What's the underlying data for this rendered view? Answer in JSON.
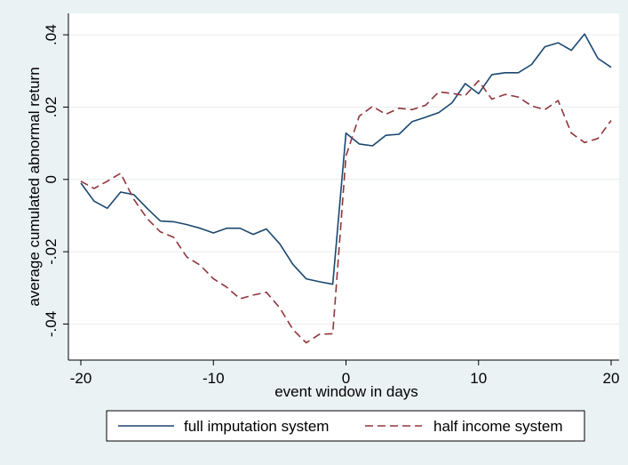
{
  "chart_data": {
    "type": "line",
    "xlabel": "event window in days",
    "ylabel": "average cumulated abnormal return",
    "xlim": [
      -20,
      20
    ],
    "ylim": [
      -0.048,
      0.042
    ],
    "x_ticks": [
      -20,
      -10,
      0,
      10,
      20
    ],
    "x_tick_labels": [
      "-20",
      "-10",
      "0",
      "10",
      "20"
    ],
    "y_ticks": [
      -0.04,
      -0.02,
      0,
      0.02,
      0.04
    ],
    "y_tick_labels": [
      "-.04",
      "-.02",
      "0",
      ".02",
      ".04"
    ],
    "grid": "horizontal",
    "legend_position": "bottom",
    "x": [
      -20,
      -19,
      -18,
      -17,
      -16,
      -15,
      -14,
      -13,
      -12,
      -11,
      -10,
      -9,
      -8,
      -7,
      -6,
      -5,
      -4,
      -3,
      -2,
      -1,
      0,
      1,
      2,
      3,
      4,
      5,
      6,
      7,
      8,
      9,
      10,
      11,
      12,
      13,
      14,
      15,
      16,
      17,
      18,
      19,
      20
    ],
    "series": [
      {
        "name": "full imputation system",
        "color": "#1a476f",
        "dash": "solid",
        "values": [
          -0.001,
          -0.006,
          -0.008,
          -0.0035,
          -0.0042,
          -0.008,
          -0.0115,
          -0.0117,
          -0.0125,
          -0.0135,
          -0.0148,
          -0.0135,
          -0.0135,
          -0.0152,
          -0.0137,
          -0.0178,
          -0.0235,
          -0.0275,
          -0.0283,
          -0.029,
          0.0128,
          0.0098,
          0.0093,
          0.0122,
          0.0125,
          0.016,
          0.0172,
          0.0185,
          0.0212,
          0.0265,
          0.0237,
          0.029,
          0.0295,
          0.0295,
          0.0318,
          0.0367,
          0.0378,
          0.0357,
          0.0402,
          0.0335,
          0.031
        ]
      },
      {
        "name": "half income system",
        "color": "#90353b",
        "dash": "dashed",
        "values": [
          -0.0005,
          -0.0025,
          -0.0005,
          0.0017,
          -0.0055,
          -0.0108,
          -0.0145,
          -0.016,
          -0.0215,
          -0.0237,
          -0.0275,
          -0.0298,
          -0.033,
          -0.032,
          -0.0312,
          -0.0355,
          -0.0415,
          -0.0452,
          -0.0428,
          -0.0427,
          0.0065,
          0.0175,
          0.0202,
          0.018,
          0.0197,
          0.0193,
          0.0205,
          0.0242,
          0.0238,
          0.0232,
          0.0273,
          0.0222,
          0.0235,
          0.0228,
          0.0203,
          0.0193,
          0.0218,
          0.0128,
          0.0102,
          0.0113,
          0.0163
        ]
      }
    ]
  }
}
